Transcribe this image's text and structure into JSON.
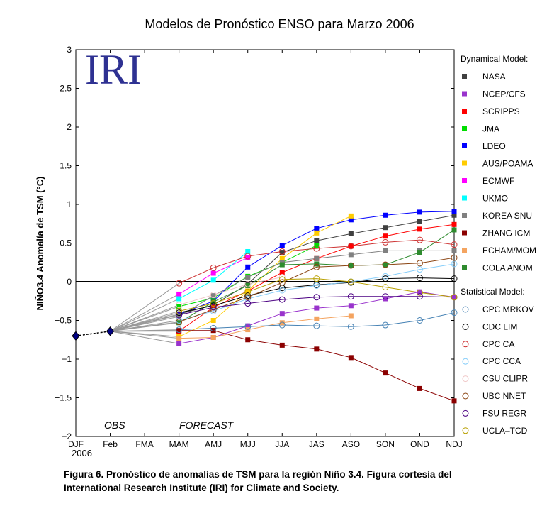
{
  "page": {
    "title": "Modelos de Pronóstico ENSO para Marzo 2006",
    "caption_line1": "Figura 6.  Pronóstico de anomalías de TSM para la región Niño 3.4. Figura cortesía del",
    "caption_line2": "International Research Institute (IRI) for Climate and Society."
  },
  "chart_data": {
    "type": "line",
    "title": "Modelos de Pronóstico ENSO para Marzo 2006",
    "ylabel": "NIÑO3.4 Anomalía de TSM (°C)",
    "xlabel": "",
    "x_year_label": "2006",
    "categories": [
      "DJF",
      "Feb",
      "FMA",
      "MAM",
      "AMJ",
      "MJJ",
      "JJA",
      "JAS",
      "ASO",
      "SON",
      "OND",
      "NDJ"
    ],
    "ylim": [
      -2,
      3
    ],
    "yticks": [
      -2,
      -1.5,
      -1,
      -0.5,
      0,
      0.5,
      1,
      1.5,
      2,
      2.5,
      3
    ],
    "ytick_labels": [
      "−2",
      "−1.5",
      "−1",
      "−0.5",
      "0",
      "0.5",
      "1",
      "1.5",
      "2",
      "2.5",
      "3"
    ],
    "logo_text": "IRI",
    "obs_label": "OBS",
    "forecast_label": "FORECAST",
    "observed": {
      "x": [
        "DJF",
        "Feb"
      ],
      "values": [
        -0.7,
        -0.64
      ],
      "color": "#000080"
    },
    "legend": {
      "dynamical_title": "Dynamical Model:",
      "statistical_title": "Statistical Model:"
    },
    "dynamical_series": [
      {
        "name": "NASA",
        "color": "#404040",
        "values": [
          -0.42,
          -0.3,
          -0.03,
          0.38,
          0.53,
          0.62,
          0.7,
          0.78,
          0.86
        ]
      },
      {
        "name": "NCEP/CFS",
        "color": "#9933cc",
        "values": [
          -0.8,
          -0.72,
          -0.57,
          -0.41,
          -0.34,
          -0.31,
          -0.22,
          -0.13,
          -0.2
        ]
      },
      {
        "name": "SCRIPPS",
        "color": "#ff0000",
        "values": [
          -0.64,
          -0.33,
          -0.12,
          0.12,
          0.3,
          0.46,
          0.59,
          0.68,
          0.74
        ]
      },
      {
        "name": "JMA",
        "color": "#00dd00",
        "values": [
          -0.32,
          -0.21,
          0.07,
          0.25,
          0.47
        ]
      },
      {
        "name": "LDEO",
        "color": "#0000ff",
        "values": [
          -0.42,
          -0.25,
          0.19,
          0.47,
          0.69,
          0.8,
          0.86,
          0.9,
          0.91
        ]
      },
      {
        "name": "AUS/POAMA",
        "color": "#ffcc00",
        "values": [
          -0.71,
          -0.5,
          -0.12,
          0.3,
          0.63,
          0.85
        ]
      },
      {
        "name": "ECMWF",
        "color": "#ff00ff",
        "values": [
          -0.16,
          0.11,
          0.31
        ]
      },
      {
        "name": "UKMO",
        "color": "#00ffff",
        "values": [
          -0.22,
          0.02,
          0.39
        ]
      },
      {
        "name": "KOREA SNU",
        "color": "#808080",
        "values": [
          -0.45,
          -0.18,
          0.06,
          0.25,
          0.3,
          0.35,
          0.4,
          0.4,
          0.4
        ]
      },
      {
        "name": "ZHANG ICM",
        "color": "#8b0000",
        "values": [
          -0.63,
          -0.63,
          -0.75,
          -0.82,
          -0.87,
          -0.98,
          -1.18,
          -1.38,
          -1.54
        ]
      },
      {
        "name": "ECHAM/MOM",
        "color": "#f4a460",
        "values": [
          -0.73,
          -0.72,
          -0.62,
          -0.53,
          -0.48,
          -0.44
        ]
      },
      {
        "name": "COLA ANOM",
        "color": "#2e8b2e",
        "values": [
          -0.53,
          -0.26,
          -0.05,
          0.22,
          0.23,
          0.21,
          0.22,
          0.38,
          0.67
        ]
      }
    ],
    "statistical_series": [
      {
        "name": "CPC MRKOV",
        "color": "#4682b4",
        "values": [
          -0.62,
          -0.6,
          -0.58,
          -0.56,
          -0.57,
          -0.58,
          -0.56,
          -0.5,
          -0.4
        ]
      },
      {
        "name": "CDC LIM",
        "color": "#000000",
        "values": [
          -0.4,
          -0.31,
          -0.18,
          -0.08,
          -0.04,
          -0.01,
          0.04,
          0.05,
          0.04
        ]
      },
      {
        "name": "CPC CA",
        "color": "#cd3333",
        "values": [
          -0.02,
          0.18,
          0.33,
          0.39,
          0.43,
          0.46,
          0.51,
          0.54,
          0.48
        ]
      },
      {
        "name": "CPC CCA",
        "color": "#87cefa",
        "values": [
          -0.5,
          -0.38,
          -0.22,
          -0.11,
          -0.05,
          0.0,
          0.07,
          0.16,
          0.23
        ]
      },
      {
        "name": "CSU CLIPR",
        "color": "#f0c8c8",
        "values": [
          -0.3,
          -0.17,
          -0.03,
          0.06
        ]
      },
      {
        "name": "UBC NNET",
        "color": "#8b4513",
        "values": [
          -0.52,
          -0.36,
          -0.2,
          -0.01,
          0.19,
          0.21,
          0.22,
          0.24,
          0.31
        ]
      },
      {
        "name": "FSU REGR",
        "color": "#4b0082",
        "values": [
          -0.43,
          -0.33,
          -0.28,
          -0.23,
          -0.2,
          -0.19,
          -0.19,
          -0.19,
          -0.2
        ]
      },
      {
        "name": "UCLA–TCD",
        "color": "#b8a000",
        "values": [
          -0.38,
          -0.28,
          -0.13,
          0.03,
          0.04,
          0.0,
          -0.07,
          -0.14,
          -0.2
        ]
      }
    ]
  }
}
